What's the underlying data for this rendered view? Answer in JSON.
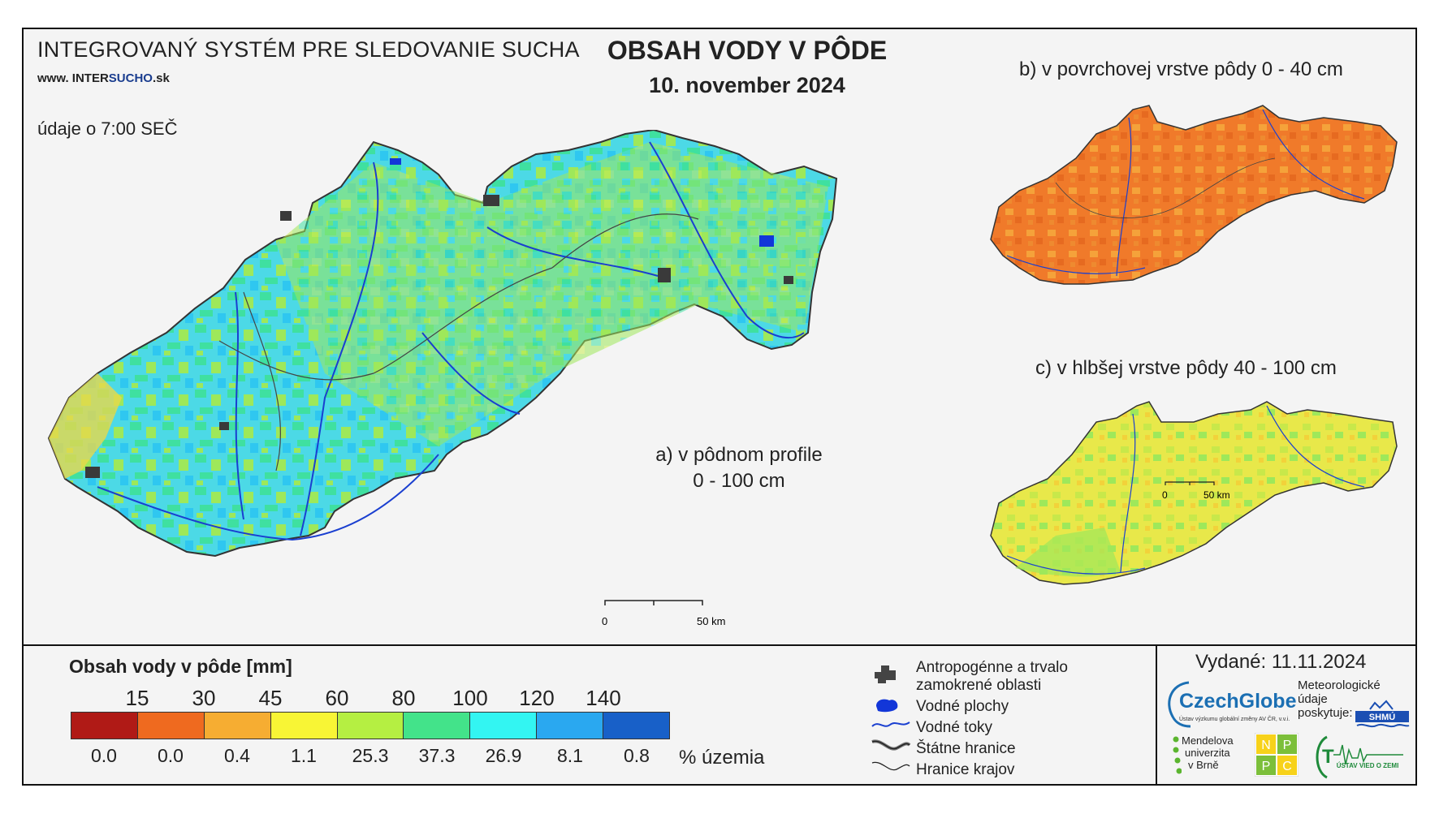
{
  "header": {
    "system_title": "INTEGROVANÝ SYSTÉM PRE SLEDOVANIE SUCHA",
    "url_prefix": "www. INTER",
    "url_highlight": "SUCHO",
    "url_suffix": ".sk",
    "time_note": "údaje o 7:00 SEČ",
    "main_title": "OBSAH VODY V PÔDE",
    "date": "10. november 2024"
  },
  "maps": {
    "a_caption_line1": "a) v pôdnom profile",
    "a_caption_line2": "0 - 100 cm",
    "b_caption": "b) v povrchovej vrstve pôdy 0 - 40 cm",
    "c_caption": "c) v hlbšej vrstve pôdy 40 - 100 cm",
    "scale_zero": "0",
    "scale_50": "50 km",
    "map_a_palette": [
      "#4cd9e6",
      "#3fe0a0",
      "#9ee85a",
      "#e8e84a",
      "#2fc7f0"
    ],
    "map_b_palette": [
      "#f07a2a",
      "#ee8a30",
      "#f5a23a",
      "#e66a20"
    ],
    "map_c_palette": [
      "#e8e84a",
      "#c8e84a",
      "#9ee85a",
      "#f2d23a"
    ]
  },
  "legend": {
    "title": "Obsah vody v pôde  [mm]",
    "ticks": [
      "15",
      "30",
      "45",
      "60",
      "80",
      "100",
      "120",
      "140"
    ],
    "colors": [
      "#b01a16",
      "#ef6a1f",
      "#f6ad32",
      "#f8f535",
      "#b5ef42",
      "#43e38a",
      "#33f5f2",
      "#2aa8f0",
      "#1860c8"
    ],
    "percentages": [
      "0.0",
      "0.0",
      "0.4",
      "1.1",
      "25.3",
      "37.3",
      "26.9",
      "8.1",
      "0.8"
    ],
    "percent_unit": "% územia"
  },
  "key": {
    "anthropogenic_line1": "Antropogénne a trvalo",
    "anthropogenic_line2": "zamokrené oblasti",
    "water_bodies": "Vodné plochy",
    "streams": "Vodné toky",
    "state_borders": "Štátne hranice",
    "region_borders": "Hranice krajov"
  },
  "footer": {
    "issued": "Vydané: 11.11.2024",
    "czechglobe": "CzechGlobe",
    "czechglobe_sub": "Ústav výzkumu globální změny AV ČR, v.v.i.",
    "meteo_line1": "Meteorologické",
    "meteo_line2": "údaje",
    "meteo_line3": "poskytuje:",
    "shmu": "SHMÚ",
    "mendel_line1": "Mendelova",
    "mendel_line2": "univerzita",
    "mendel_line3": "v Brně",
    "npc": [
      "N",
      "P",
      "P",
      "C"
    ],
    "ustav": "ÚSTAV VIED O ZEMI"
  }
}
